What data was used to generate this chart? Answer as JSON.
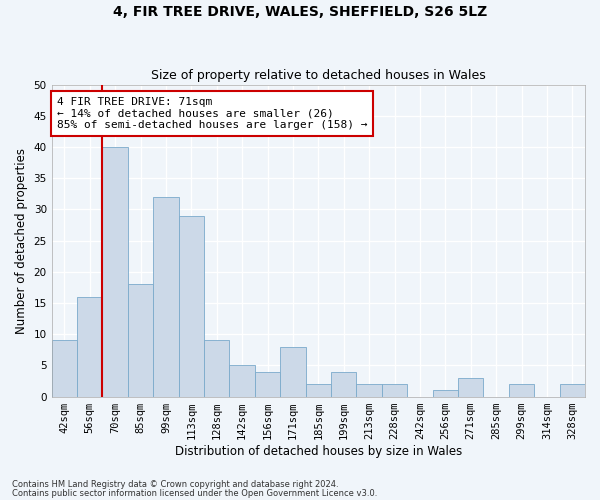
{
  "title": "4, FIR TREE DRIVE, WALES, SHEFFIELD, S26 5LZ",
  "subtitle": "Size of property relative to detached houses in Wales",
  "xlabel": "Distribution of detached houses by size in Wales",
  "ylabel": "Number of detached properties",
  "bar_color": "#ccd9e8",
  "bar_edge_color": "#7aaacb",
  "vline_color": "#cc0000",
  "vline_x_index": 2,
  "categories": [
    "42sqm",
    "56sqm",
    "70sqm",
    "85sqm",
    "99sqm",
    "113sqm",
    "128sqm",
    "142sqm",
    "156sqm",
    "171sqm",
    "185sqm",
    "199sqm",
    "213sqm",
    "228sqm",
    "242sqm",
    "256sqm",
    "271sqm",
    "285sqm",
    "299sqm",
    "314sqm",
    "328sqm"
  ],
  "values": [
    9,
    16,
    40,
    18,
    32,
    29,
    9,
    5,
    4,
    8,
    2,
    4,
    2,
    2,
    0,
    1,
    3,
    0,
    2,
    0,
    2
  ],
  "ylim": [
    0,
    50
  ],
  "yticks": [
    0,
    5,
    10,
    15,
    20,
    25,
    30,
    35,
    40,
    45,
    50
  ],
  "annotation_line1": "4 FIR TREE DRIVE: 71sqm",
  "annotation_line2": "← 14% of detached houses are smaller (26)",
  "annotation_line3": "85% of semi-detached houses are larger (158) →",
  "annotation_box_color": "#ffffff",
  "annotation_box_edge": "#cc0000",
  "footer1": "Contains HM Land Registry data © Crown copyright and database right 2024.",
  "footer2": "Contains public sector information licensed under the Open Government Licence v3.0.",
  "background_color": "#f0f5fa",
  "grid_color": "#ffffff",
  "title_fontsize": 10,
  "subtitle_fontsize": 9,
  "axis_label_fontsize": 8.5,
  "tick_fontsize": 7.5,
  "annotation_fontsize": 8
}
